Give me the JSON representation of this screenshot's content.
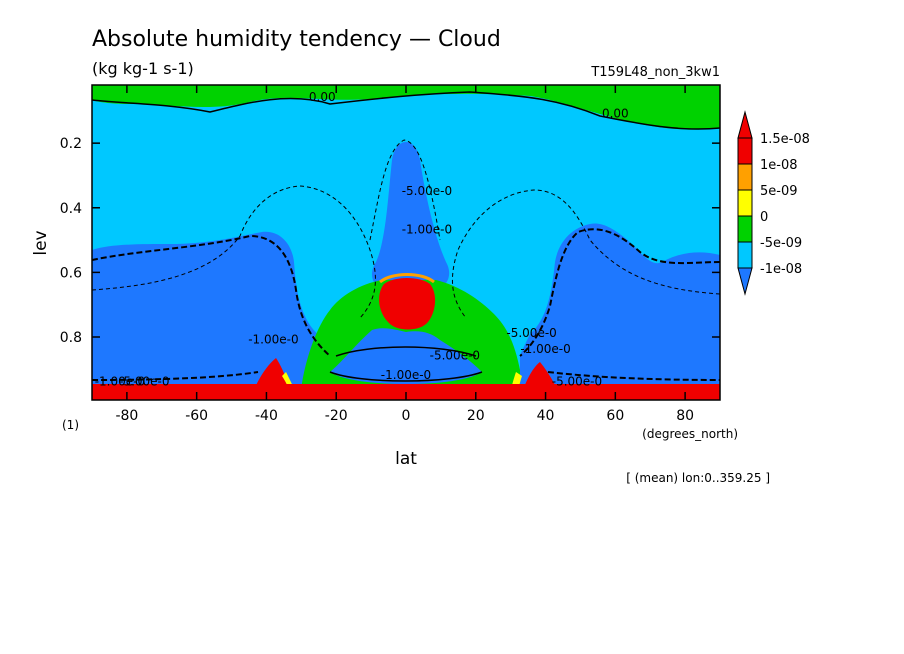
{
  "chart_data": {
    "type": "contour",
    "title": "Absolute humidity tendency — Cloud",
    "subtitle": "(kg kg-1 s-1)",
    "run_label": "T159L48_non_3kw1",
    "xlabel": "lat",
    "x_units": "(degrees_north)",
    "ylabel": "lev",
    "y_units": "(1)",
    "footnote": "[ (mean) lon:0..359.25 ]",
    "xlim": [
      -90,
      90
    ],
    "ylim": [
      0.995,
      0.02
    ],
    "y_inverted": true,
    "x_ticks": [
      -80,
      -60,
      -40,
      -20,
      0,
      20,
      40,
      60,
      80
    ],
    "x_tick_labels": [
      "-80",
      "-60",
      "-40",
      "-20",
      "0",
      "20",
      "40",
      "60",
      "80"
    ],
    "y_ticks": [
      0.2,
      0.4,
      0.6,
      0.8
    ],
    "y_tick_labels": [
      "0.2",
      "0.4",
      "0.6",
      "0.8"
    ],
    "colorbar": {
      "placement": "right",
      "levels": [
        {
          "label": "-1e-08",
          "color": "#1e78ff"
        },
        {
          "label": "-5e-09",
          "color": "#00c8ff"
        },
        {
          "label": "0",
          "color": "#00d200"
        },
        {
          "label": "5e-09",
          "color": "#ffff00"
        },
        {
          "label": "1e-08",
          "color": "#ffa000"
        },
        {
          "label": "1.5e-08",
          "color": "#f00000"
        }
      ],
      "below_color": "#1e78ff",
      "above_color": "#f00000",
      "band_colors": [
        "#00c8ff",
        "#00d200",
        "#ffff00",
        "#ffa000",
        "#f00000"
      ]
    },
    "contour_labels": [
      {
        "text": "0.00",
        "lat": -24,
        "lev": 0.07
      },
      {
        "text": "0.00",
        "lat": 60,
        "lev": 0.12
      },
      {
        "text": "-5.00e-0",
        "lat": 6,
        "lev": 0.36
      },
      {
        "text": "-1.00e-0",
        "lat": 6,
        "lev": 0.48
      },
      {
        "text": "-1.00e-0",
        "lat": -38,
        "lev": 0.82
      },
      {
        "text": "-5.00e-0",
        "lat": 14,
        "lev": 0.87
      },
      {
        "text": "-1.00e-0",
        "lat": 0,
        "lev": 0.93
      },
      {
        "text": "-5.00e-0",
        "lat": 36,
        "lev": 0.8
      },
      {
        "text": "-1.00e-0",
        "lat": 40,
        "lev": 0.85
      },
      {
        "text": "-5.00e-0",
        "lat": 49,
        "lev": 0.95
      },
      {
        "text": "-1.00e-0",
        "lat": -82,
        "lev": 0.95
      },
      {
        "text": "-5.00e-0",
        "lat": -75,
        "lev": 0.95
      }
    ]
  }
}
